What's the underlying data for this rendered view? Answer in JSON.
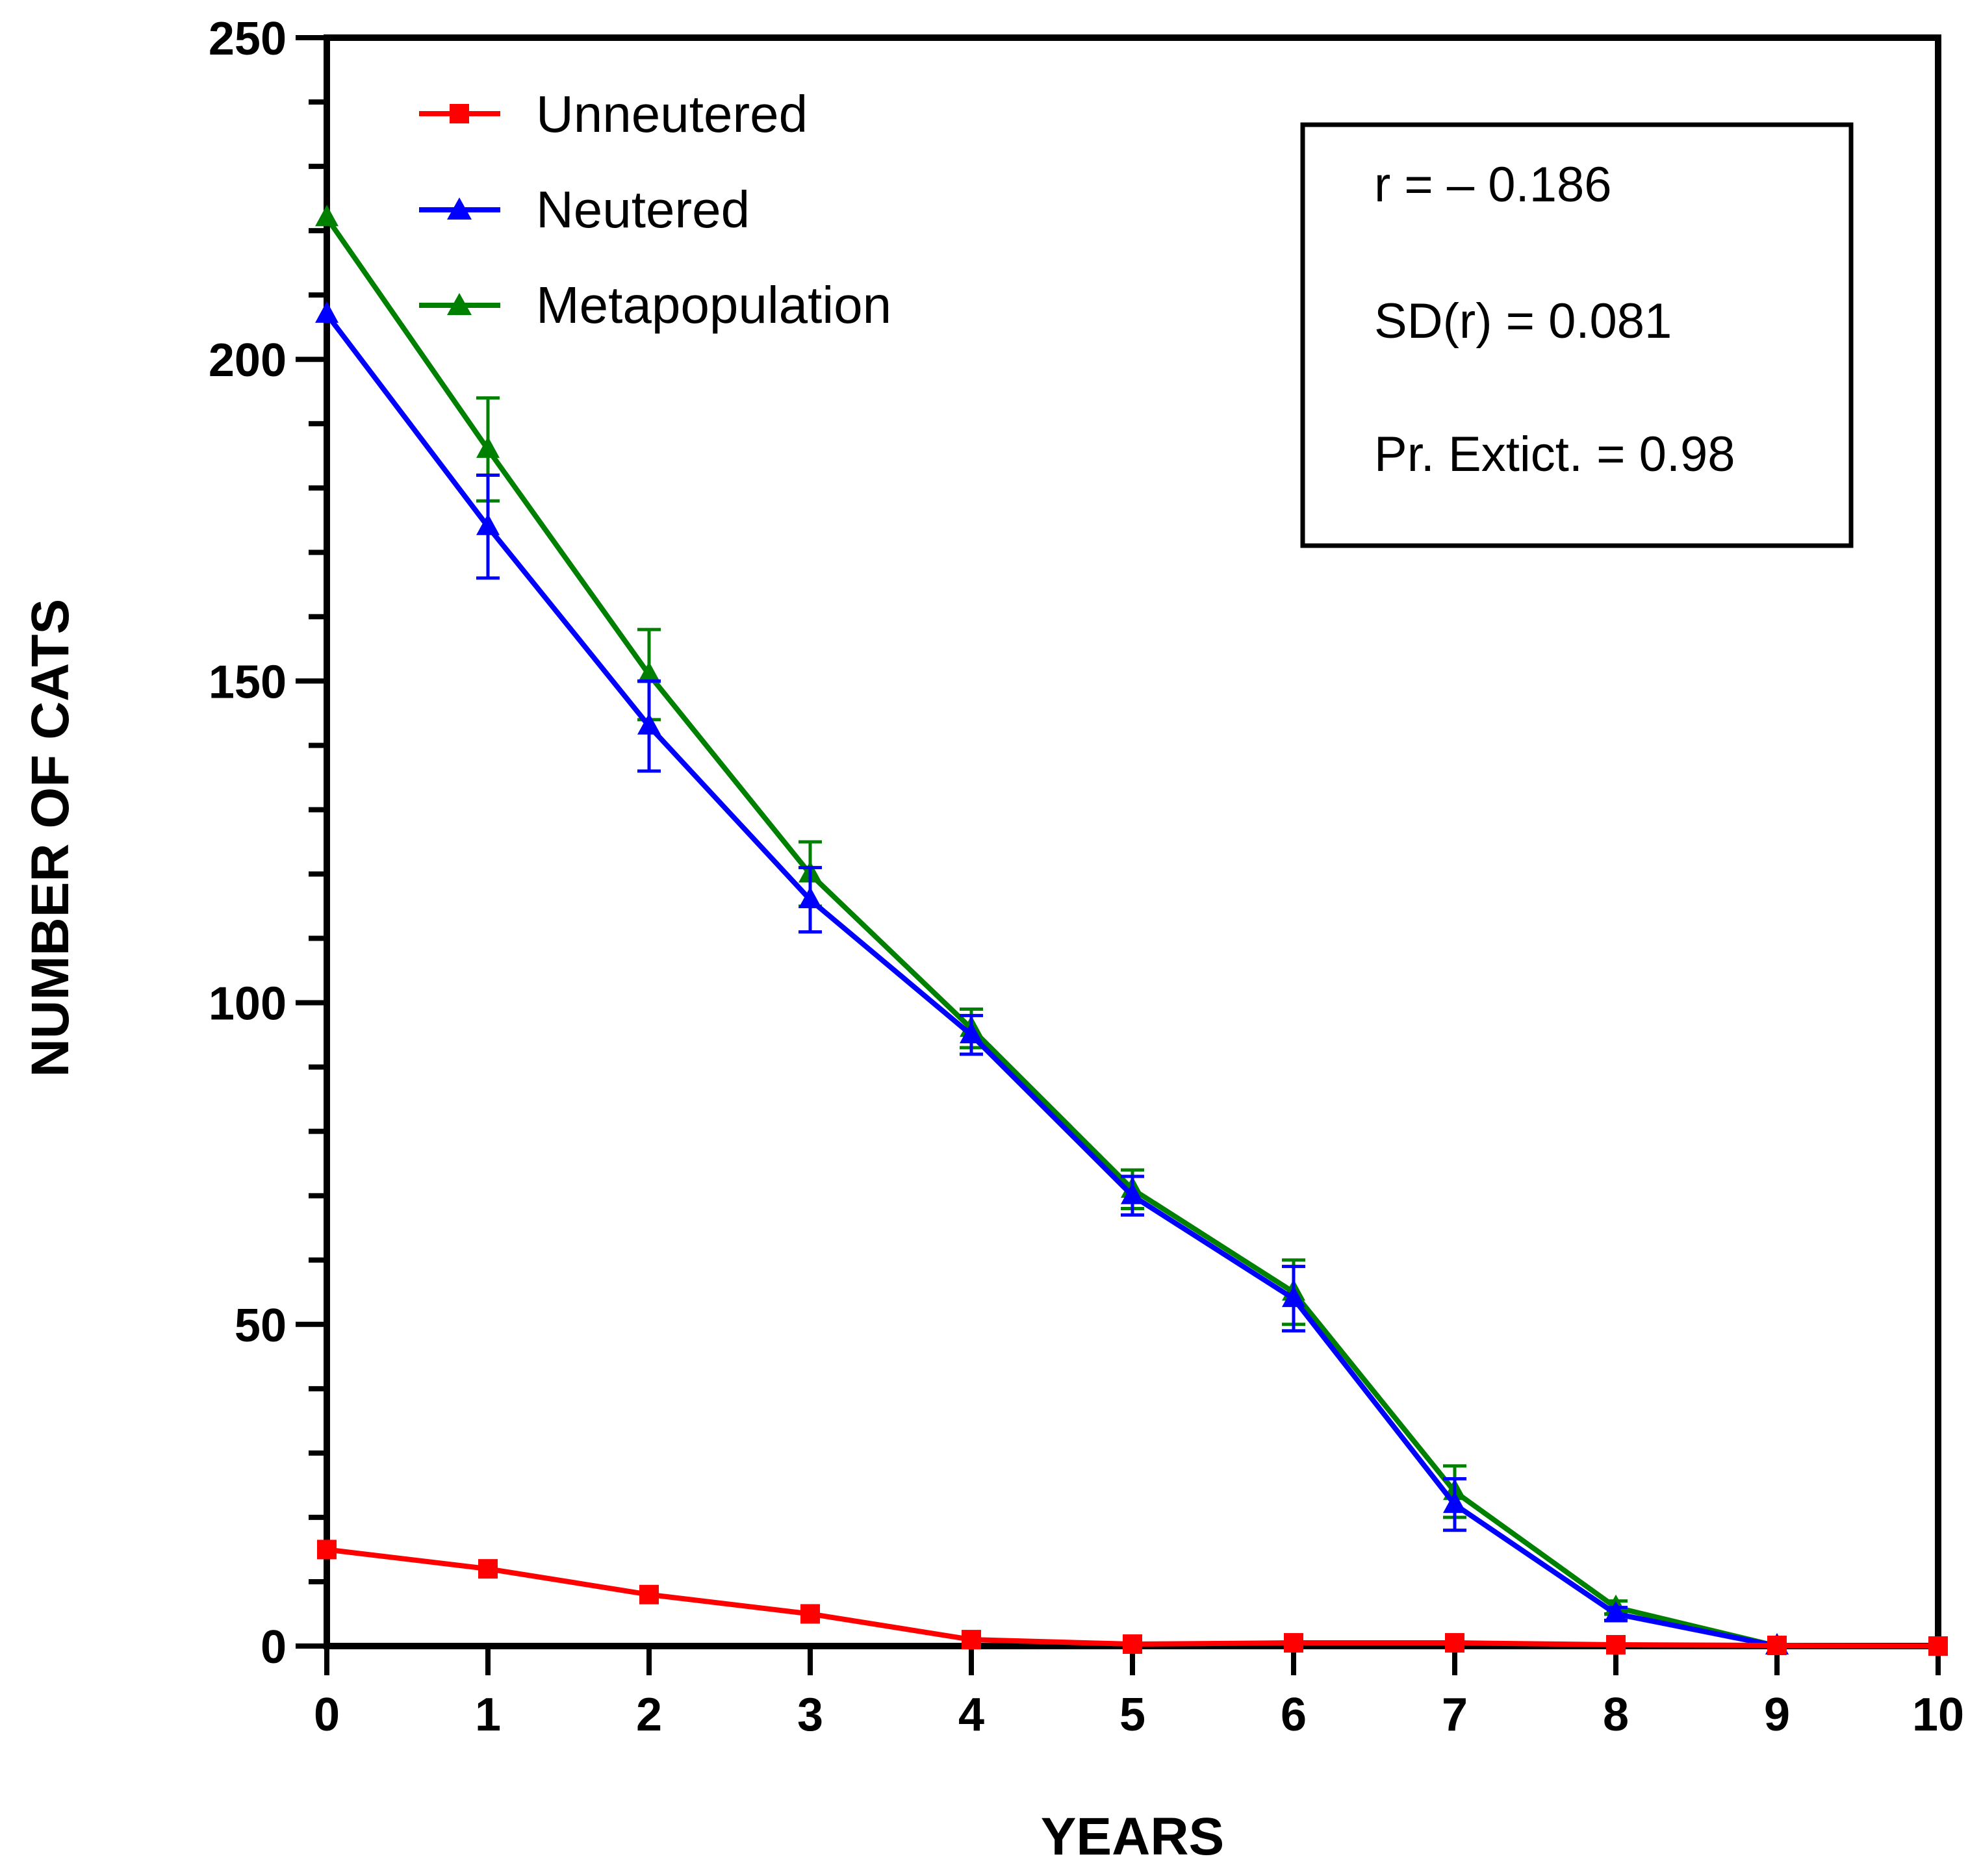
{
  "chart_data": {
    "type": "line",
    "xlabel": "YEARS",
    "ylabel": "NUMBER OF CATS",
    "xlim": [
      0,
      10
    ],
    "ylim": [
      0,
      250
    ],
    "x_ticks": [
      0,
      1,
      2,
      3,
      4,
      5,
      6,
      7,
      8,
      9,
      10
    ],
    "y_ticks": [
      0,
      50,
      100,
      150,
      200,
      250
    ],
    "y_minor_step": 10,
    "x": [
      0,
      1,
      2,
      3,
      4,
      5,
      6,
      7,
      8,
      9,
      10
    ],
    "series": [
      {
        "name": "Unneutered",
        "color": "#ff0000",
        "marker": "square",
        "values": [
          15,
          12,
          8,
          5,
          1,
          0.3,
          0.5,
          0.5,
          0.2,
          0.1,
          0
        ],
        "errors": null
      },
      {
        "name": "Neutered",
        "color": "#0000ff",
        "marker": "triangle",
        "values": [
          207,
          174,
          143,
          116,
          95,
          70,
          54,
          22,
          5,
          0,
          null
        ],
        "errors": [
          null,
          8,
          7,
          5,
          3,
          3,
          5,
          4,
          1,
          null,
          null
        ]
      },
      {
        "name": "Metapopulation",
        "color": "#008000",
        "marker": "triangle",
        "values": [
          222,
          186,
          151,
          120,
          96,
          71,
          55,
          24,
          6,
          0,
          null
        ],
        "errors": [
          null,
          8,
          7,
          5,
          3,
          3,
          5,
          4,
          1,
          null,
          null
        ]
      }
    ],
    "legend_position": "top-left",
    "stats": {
      "r": "r =  – 0.186",
      "sd": "SD(r) = 0.081",
      "extinction": "Pr. Extict. = 0.98"
    }
  }
}
